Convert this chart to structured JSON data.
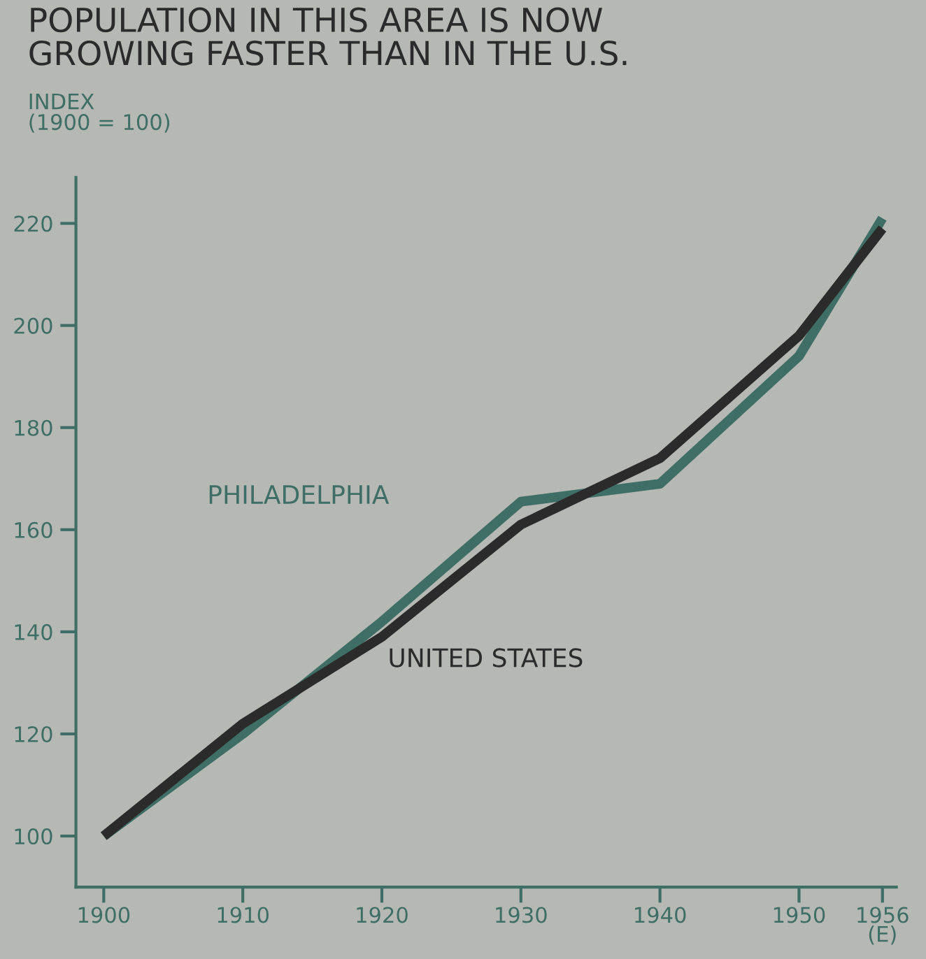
{
  "chart_data": {
    "type": "line",
    "title": "POPULATION IN THIS AREA IS NOW\nGROWING FASTER THAN IN THE U.S.",
    "ylabel": "INDEX\n(1900 = 100)",
    "x": [
      1900,
      1910,
      1920,
      1930,
      1940,
      1950,
      1956
    ],
    "series": [
      {
        "name": "PHILADELPHIA",
        "color": "#3f6e66",
        "values": [
          100,
          120,
          142,
          165.5,
          169,
          194,
          221
        ]
      },
      {
        "name": "UNITED STATES",
        "color": "#2b2b2b",
        "values": [
          100,
          122,
          139,
          161,
          174,
          198,
          219
        ]
      }
    ],
    "xlim": [
      1898,
      1957
    ],
    "xticks": [
      1900,
      1910,
      1920,
      1930,
      1940,
      1950,
      {
        "value": 1956,
        "label": "1956\n(E)"
      }
    ],
    "ylim": [
      90,
      229
    ],
    "yticks": [
      100,
      120,
      140,
      160,
      180,
      200,
      220
    ],
    "grid": false,
    "legend": false,
    "marker": "none",
    "line_style": "solid"
  }
}
